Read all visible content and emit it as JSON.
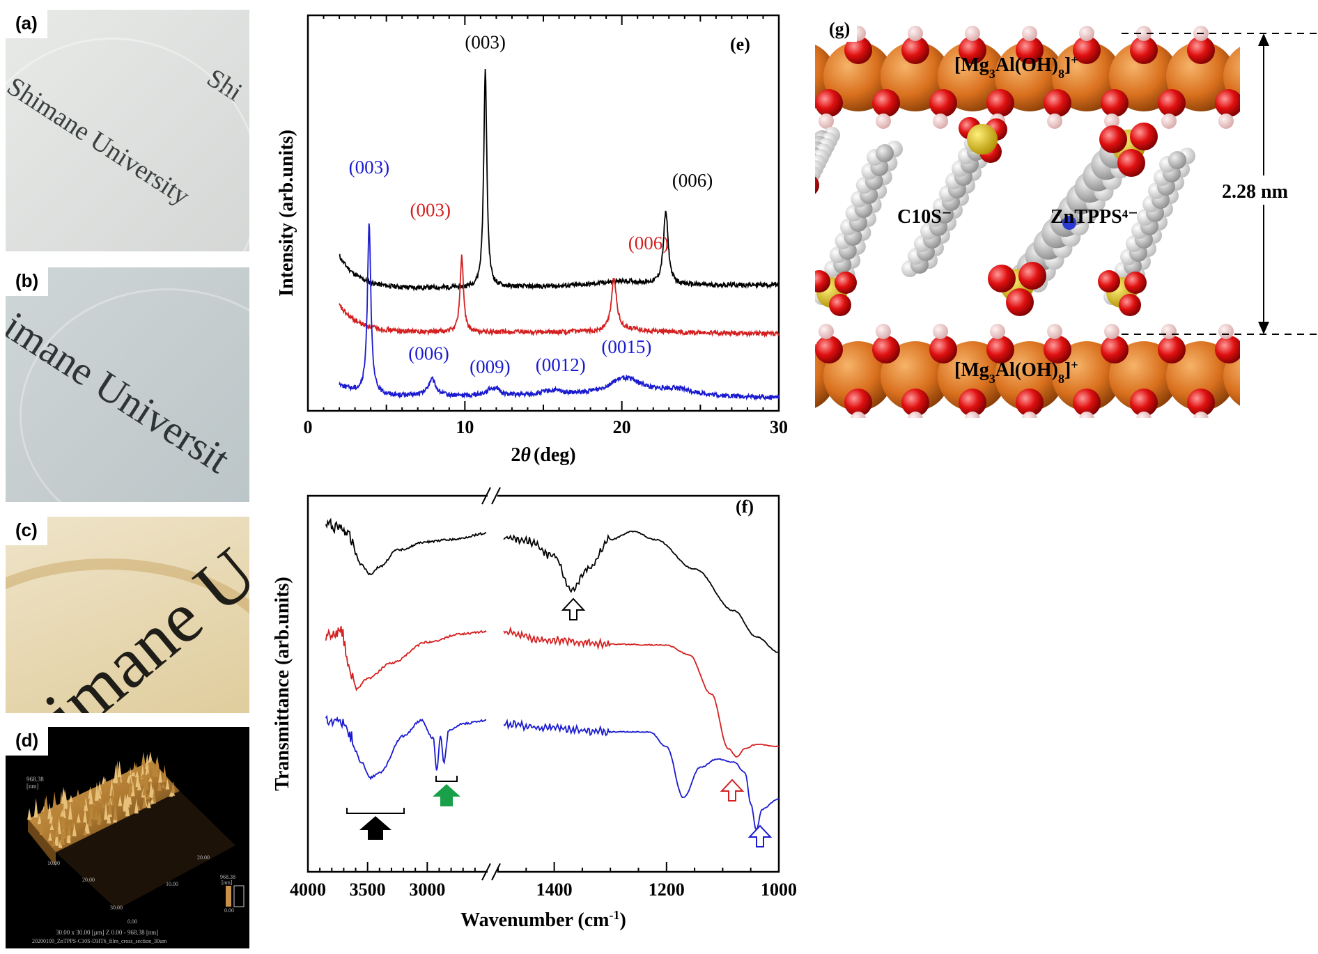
{
  "panels": {
    "a": {
      "label": "(a)",
      "texts": [
        "Shimane University",
        "Shi"
      ]
    },
    "b": {
      "label": "(b)",
      "text": "imane Universit"
    },
    "c": {
      "label": "(c)",
      "text": "imane U"
    },
    "d": {
      "label": "(d)",
      "axis_unit": "[nm]",
      "axis_top": "968.38",
      "tick_x1": "10.00",
      "tick_x2": "20.00",
      "tick_x3": "30.00",
      "tick_y1": "10.00",
      "tick_y2": "20.00",
      "origin": "0.00",
      "scale_top": "968.38",
      "scale_unit": "[nm]",
      "scale_bottom": "0.00",
      "caption1": "30.00 x 30.00 [μm]   Z 0.00 - 968.38 [nm]",
      "caption2": "20200109_ZnTPPS-C10S-DHT6_film_cross_section_30um"
    },
    "g": {
      "label": "(g)",
      "top_layer": "[Mg3Al(OH)8]+",
      "bottom_layer": "[Mg3Al(OH)8]+",
      "guest1": "C10S⁻",
      "guest2": "ZnTPPS⁴⁻",
      "spacing": "2.28 nm"
    }
  },
  "colors": {
    "black": "#000000",
    "red": "#d42020",
    "blue": "#1a1ad0",
    "green": "#1aa048",
    "orange": "#d9701e"
  },
  "chart_data": [
    {
      "id": "e",
      "type": "line",
      "panel_label": "(e)",
      "xlabel": "2θ (deg)",
      "xlabel_main": "2",
      "xlabel_theta": "θ",
      "xlabel_unit": "(deg)",
      "ylabel": "Intensity (arb.units)",
      "xlim": [
        0,
        30
      ],
      "xticks": [
        "0",
        "10",
        "20",
        "30"
      ],
      "series": [
        {
          "name": "black",
          "color": "#000000",
          "baseline": 3.7,
          "left": 4.7,
          "right": 3.9,
          "peaks": [
            [
              11.3,
              6.6,
              0.12
            ],
            [
              22.8,
              2.2,
              0.18
            ],
            [
              20,
              0.15,
              2.0
            ]
          ]
        },
        {
          "name": "red",
          "color": "#d42020",
          "baseline": 2.4,
          "left": 3.2,
          "right": 2.3,
          "peaks": [
            [
              9.8,
              2.3,
              0.13
            ],
            [
              19.5,
              1.6,
              0.2
            ],
            [
              20.5,
              0.1,
              2.0
            ]
          ]
        },
        {
          "name": "blue",
          "color": "#1a1ad0",
          "baseline": 0.45,
          "left": 0.8,
          "right": 0.35,
          "peaks": [
            [
              3.9,
              5.2,
              0.13
            ],
            [
              7.9,
              0.5,
              0.3
            ],
            [
              11.8,
              0.25,
              0.5
            ],
            [
              15.6,
              0.15,
              0.9
            ],
            [
              20.2,
              0.55,
              1.4
            ],
            [
              23.5,
              0.2,
              1.5
            ]
          ]
        }
      ],
      "annotations": [
        {
          "text": "(003)",
          "x": 11.3,
          "y": 11.0,
          "color": "#000000",
          "series": "black"
        },
        {
          "text": "(006)",
          "x": 24.5,
          "y": 6.8,
          "color": "#000000",
          "series": "black"
        },
        {
          "text": "(003)",
          "x": 7.8,
          "y": 5.9,
          "color": "#d42020",
          "series": "red"
        },
        {
          "text": "(006)",
          "x": 21.7,
          "y": 4.9,
          "color": "#d42020",
          "series": "red"
        },
        {
          "text": "(003)",
          "x": 3.9,
          "y": 7.2,
          "color": "#1a1ad0",
          "series": "blue"
        },
        {
          "text": "(006)",
          "x": 7.7,
          "y": 1.55,
          "color": "#1a1ad0",
          "series": "blue"
        },
        {
          "text": "(009)",
          "x": 11.6,
          "y": 1.15,
          "color": "#1a1ad0",
          "series": "blue"
        },
        {
          "text": "(0012)",
          "x": 16.1,
          "y": 1.2,
          "color": "#1a1ad0",
          "series": "blue"
        },
        {
          "text": "(0015)",
          "x": 20.3,
          "y": 1.75,
          "color": "#1a1ad0",
          "series": "blue"
        }
      ]
    },
    {
      "id": "f",
      "type": "line",
      "panel_label": "(f)",
      "xlabel": "Wavenumber (cm-1)",
      "xlabel_main": "Wavenumber (cm",
      "xlabel_sup": "-1",
      "xlabel_end": ")",
      "ylabel": "Transmittance (arb.units)",
      "xlim_left": [
        4000,
        2500
      ],
      "xlim_right": [
        1500,
        1000
      ],
      "xticks": [
        "4000",
        "3500",
        "3000",
        "1400",
        "1200",
        "1000"
      ],
      "series": [
        {
          "name": "black",
          "color": "#000000",
          "left": [
            [
              3850,
              0.58
            ],
            [
              3720,
              0.6
            ],
            [
              3650,
              0.7
            ],
            [
              3550,
              0.96
            ],
            [
              3480,
              1.05
            ],
            [
              3400,
              0.98
            ],
            [
              3250,
              0.82
            ],
            [
              3000,
              0.74
            ],
            [
              2800,
              0.72
            ],
            [
              2500,
              0.66
            ]
          ],
          "right": [
            [
              1490,
              0.7
            ],
            [
              1450,
              0.73
            ],
            [
              1400,
              0.88
            ],
            [
              1370,
              1.2
            ],
            [
              1340,
              1.0
            ],
            [
              1300,
              0.72
            ],
            [
              1260,
              0.64
            ],
            [
              1220,
              0.72
            ],
            [
              1150,
              1.0
            ],
            [
              1080,
              1.4
            ],
            [
              1040,
              1.65
            ],
            [
              1000,
              1.8
            ]
          ]
        },
        {
          "name": "red",
          "color": "#d42020",
          "left": [
            [
              3850,
              1.63
            ],
            [
              3720,
              1.6
            ],
            [
              3650,
              1.95
            ],
            [
              3600,
              2.15
            ],
            [
              3500,
              2.05
            ],
            [
              3300,
              1.9
            ],
            [
              3000,
              1.7
            ],
            [
              2700,
              1.62
            ],
            [
              2500,
              1.6
            ]
          ],
          "right": [
            [
              1490,
              1.6
            ],
            [
              1420,
              1.68
            ],
            [
              1300,
              1.72
            ],
            [
              1200,
              1.73
            ],
            [
              1160,
              1.82
            ],
            [
              1120,
              2.2
            ],
            [
              1090,
              2.72
            ],
            [
              1075,
              2.8
            ],
            [
              1060,
              2.72
            ],
            [
              1040,
              2.68
            ],
            [
              1000,
              2.7
            ]
          ]
        },
        {
          "name": "blue",
          "color": "#1a1ad0",
          "left": [
            [
              3850,
              2.43
            ],
            [
              3720,
              2.45
            ],
            [
              3650,
              2.6
            ],
            [
              3550,
              2.85
            ],
            [
              3480,
              3.0
            ],
            [
              3400,
              2.95
            ],
            [
              3200,
              2.6
            ],
            [
              3050,
              2.45
            ],
            [
              2950,
              2.62
            ],
            [
              2920,
              2.93
            ],
            [
              2890,
              2.6
            ],
            [
              2860,
              2.85
            ],
            [
              2820,
              2.55
            ],
            [
              2700,
              2.48
            ],
            [
              2500,
              2.45
            ]
          ],
          "right": [
            [
              1490,
              2.48
            ],
            [
              1420,
              2.52
            ],
            [
              1300,
              2.56
            ],
            [
              1230,
              2.56
            ],
            [
              1200,
              2.7
            ],
            [
              1170,
              3.19
            ],
            [
              1140,
              2.9
            ],
            [
              1110,
              2.82
            ],
            [
              1080,
              2.85
            ],
            [
              1060,
              2.95
            ],
            [
              1050,
              3.25
            ],
            [
              1040,
              3.5
            ],
            [
              1030,
              3.3
            ],
            [
              1000,
              3.2
            ]
          ]
        }
      ]
    }
  ]
}
